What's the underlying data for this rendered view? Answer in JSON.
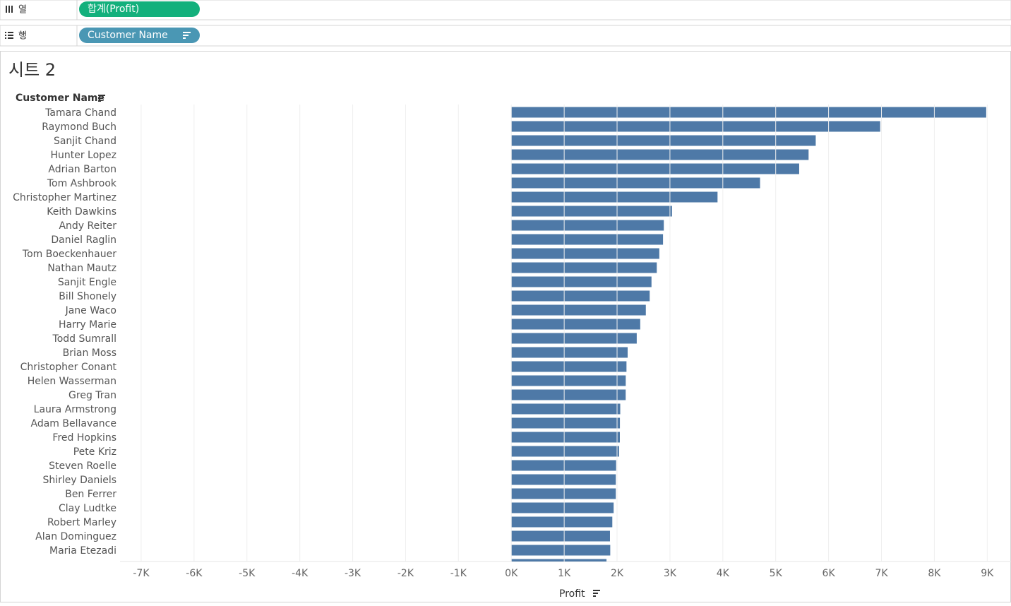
{
  "shelves": {
    "columns": {
      "label": "열",
      "pill": "합계(Profit)"
    },
    "rows": {
      "label": "행",
      "pill": "Customer Name"
    }
  },
  "sheet_title": "시트 2",
  "chart_data": {
    "type": "bar",
    "orientation": "horizontal",
    "y_label": "Customer Name",
    "x_label": "Profit",
    "categories": [
      "Tamara Chand",
      "Raymond Buch",
      "Sanjit Chand",
      "Hunter Lopez",
      "Adrian Barton",
      "Tom Ashbrook",
      "Christopher Martinez",
      "Keith Dawkins",
      "Andy Reiter",
      "Daniel Raglin",
      "Tom Boeckenhauer",
      "Nathan Mautz",
      "Sanjit Engle",
      "Bill Shonely",
      "Jane Waco",
      "Harry Marie",
      "Todd Sumrall",
      "Brian Moss",
      "Christopher Conant",
      "Helen Wasserman",
      "Greg Tran",
      "Laura Armstrong",
      "Adam Bellavance",
      "Fred Hopkins",
      "Pete Kriz",
      "Steven Roelle",
      "Shirley Daniels",
      "Ben Ferrer",
      "Clay Ludtke",
      "Robert Marley",
      "Alan Dominguez",
      "Maria Etezadi",
      null
    ],
    "values": [
      8981,
      6976,
      5757,
      5622,
      5444,
      4704,
      3900,
      3039,
      2884,
      2869,
      2799,
      2751,
      2651,
      2617,
      2544,
      2438,
      2372,
      2200,
      2178,
      2164,
      2163,
      2060,
      2054,
      2053,
      2038,
      1982,
      1976,
      1976,
      1935,
      1910,
      1866,
      1871,
      1800
    ],
    "color": "#4e79a7",
    "xlim": [
      -7400,
      9450
    ],
    "xticks": [
      {
        "value": -7000,
        "label": "-7K"
      },
      {
        "value": -6000,
        "label": "-6K"
      },
      {
        "value": -5000,
        "label": "-5K"
      },
      {
        "value": -4000,
        "label": "-4K"
      },
      {
        "value": -3000,
        "label": "-3K"
      },
      {
        "value": -2000,
        "label": "-2K"
      },
      {
        "value": -1000,
        "label": "-1K"
      },
      {
        "value": 0,
        "label": "0K"
      },
      {
        "value": 1000,
        "label": "1K"
      },
      {
        "value": 2000,
        "label": "2K"
      },
      {
        "value": 3000,
        "label": "3K"
      },
      {
        "value": 4000,
        "label": "4K"
      },
      {
        "value": 5000,
        "label": "5K"
      },
      {
        "value": 6000,
        "label": "6K"
      },
      {
        "value": 7000,
        "label": "7K"
      },
      {
        "value": 8000,
        "label": "8K"
      },
      {
        "value": 9000,
        "label": "9K"
      }
    ],
    "grid": true
  }
}
